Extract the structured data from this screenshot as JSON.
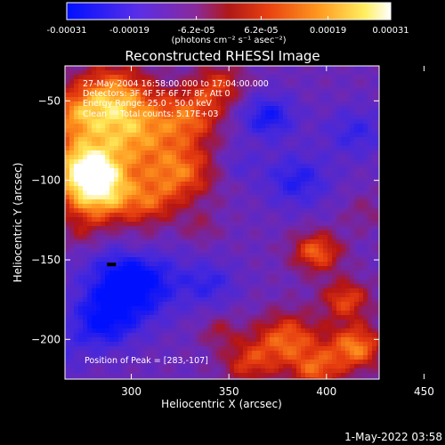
{
  "chart_data": {
    "type": "heatmap",
    "title": "Reconstructed RHESSI Image",
    "xlabel": "Heliocentric X (arcsec)",
    "ylabel": "Heliocentric Y (arcsec)",
    "xlim": [
      266,
      427
    ],
    "ylim": [
      -225,
      -28
    ],
    "xticks": [
      300,
      350,
      400,
      450
    ],
    "yticks": [
      -50,
      -100,
      -150,
      -200
    ],
    "colorbar": {
      "ticks": [
        "-0.00031",
        "-0.00019",
        "-6.2e-05",
        "6.2e-05",
        "0.00019",
        "0.00031"
      ],
      "values": [
        -0.00031,
        -0.00019,
        -6.2e-05,
        6.2e-05,
        0.00019,
        0.00031
      ],
      "range": [
        -0.00031,
        0.00031
      ],
      "unit_label": "(photons cm⁻² s⁻¹ asec⁻²)",
      "colors": [
        "#0000ff",
        "#6a2ee0",
        "#b048a8",
        "#e83a10",
        "#ff8c1a",
        "#ffff66",
        "#ffffff"
      ]
    },
    "annotations": [
      "27-May-2004 16:58:00.000 to 17:04:00.000",
      "Detectors: 3F 4F 5F 6F 7F 8F, Att 0",
      "Energy Range: 25.0 - 50.0 keV",
      "Clean     Total counts: 5.17E+03"
    ],
    "peak_label": "Position of Peak = [283,-107]",
    "peak": [
      283,
      -107
    ]
  },
  "footer": {
    "timestamp": "1-May-2022 03:58"
  }
}
